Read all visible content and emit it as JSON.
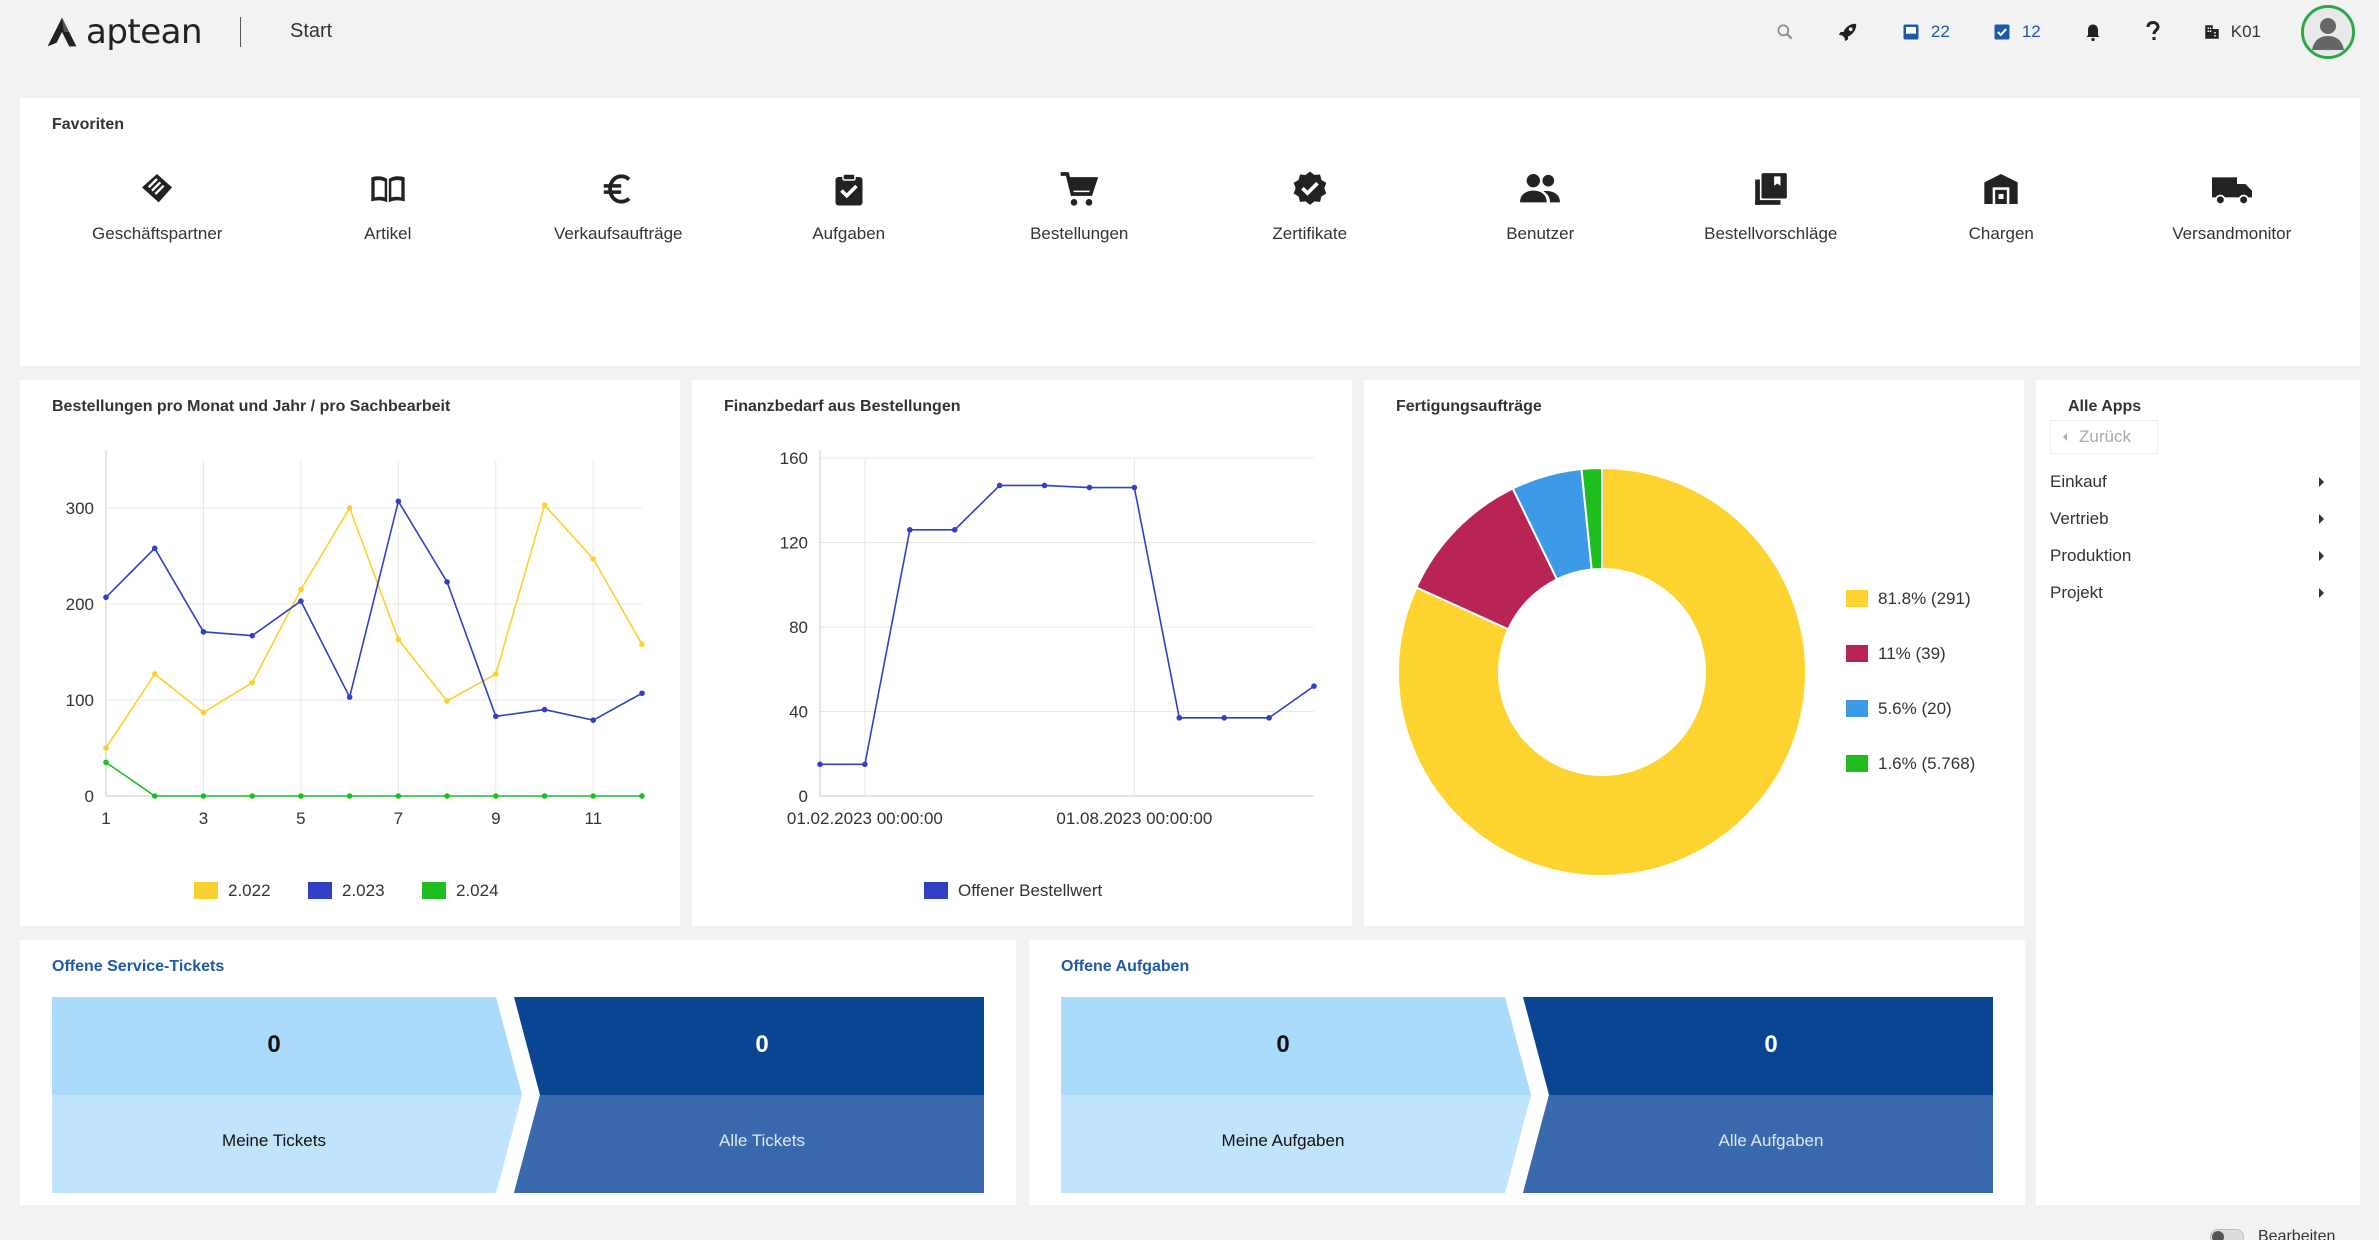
{
  "topbar": {
    "logo_text": "aptean",
    "title": "Start",
    "inbox_count": "22",
    "tasks_count": "12",
    "company": "K01"
  },
  "favorites": {
    "title": "Favoriten",
    "items": [
      {
        "label": "Geschäftspartner",
        "icon": "handshake-icon"
      },
      {
        "label": "Artikel",
        "icon": "book-icon"
      },
      {
        "label": "Verkaufsaufträge",
        "icon": "euro-icon"
      },
      {
        "label": "Aufgaben",
        "icon": "clipboard-check-icon"
      },
      {
        "label": "Bestellungen",
        "icon": "shopping-cart-icon"
      },
      {
        "label": "Zertifikate",
        "icon": "verified-badge-icon"
      },
      {
        "label": "Benutzer",
        "icon": "people-icon"
      },
      {
        "label": "Bestellvorschläge",
        "icon": "library-books-icon"
      },
      {
        "label": "Chargen",
        "icon": "warehouse-icon"
      },
      {
        "label": "Versandmonitor",
        "icon": "truck-icon"
      }
    ]
  },
  "chart1": {
    "title": "Bestellungen pro Monat und Jahr / pro Sachbearbeit"
  },
  "chart2": {
    "title": "Finanzbedarf aus Bestellungen"
  },
  "chart3": {
    "title": "Fertigungsaufträge"
  },
  "chart_data": [
    {
      "type": "line",
      "x": [
        1,
        2,
        3,
        4,
        5,
        6,
        7,
        8,
        9,
        10,
        11,
        12
      ],
      "xticks": [
        "1",
        "3",
        "5",
        "7",
        "9",
        "11"
      ],
      "xtick_values": [
        1,
        3,
        5,
        7,
        9,
        11
      ],
      "yticks": [
        "0",
        "100",
        "200",
        "300"
      ],
      "ytick_values": [
        0,
        100,
        200,
        300
      ],
      "ylim": [
        0,
        350
      ],
      "series": [
        {
          "name": "2.022",
          "color": "#f9d02f",
          "values": [
            50,
            127,
            87,
            118,
            215,
            300,
            163,
            99,
            127,
            303,
            247,
            158
          ]
        },
        {
          "name": "2.023",
          "color": "#3041c5",
          "values": [
            207,
            258,
            171,
            167,
            203,
            103,
            307,
            223,
            83,
            90,
            79,
            107
          ]
        },
        {
          "name": "2.024",
          "color": "#1fbe1f",
          "values": [
            35,
            0,
            0,
            0,
            0,
            0,
            0,
            0,
            0,
            0,
            0,
            0
          ]
        }
      ],
      "grid": true,
      "legend": "bottom"
    },
    {
      "type": "line",
      "x": [
        "2023-01-01",
        "2023-02-01",
        "2023-03-01",
        "2023-04-01",
        "2023-05-01",
        "2023-06-01",
        "2023-07-01",
        "2023-08-01",
        "2023-09-01",
        "2023-10-01",
        "2023-11-01",
        "2023-12-01"
      ],
      "xticks": [
        "01.02.2023 00:00:00",
        "01.08.2023 00:00:00"
      ],
      "yticks": [
        "0",
        "40",
        "80",
        "120",
        "160"
      ],
      "ytick_values": [
        0,
        40,
        80,
        120,
        160
      ],
      "ylim": [
        0,
        160
      ],
      "series": [
        {
          "name": "Offener Bestellwert",
          "color": "#3041c5",
          "values": [
            15,
            15,
            126,
            126,
            147,
            147,
            146,
            146,
            37,
            37,
            37,
            52
          ]
        }
      ],
      "grid": true,
      "legend": "bottom"
    },
    {
      "type": "pie",
      "donut": true,
      "labels": [
        "81.8% (291)",
        "11% (39)",
        "5.6% (20)",
        "1.6% (5.768)"
      ],
      "values": [
        81.8,
        11,
        5.6,
        1.6
      ],
      "colors": [
        "#fdd42f",
        "#b82454",
        "#3d9ae6",
        "#1fbe1f"
      ],
      "legend": "right"
    }
  ],
  "apps": {
    "title": "Alle Apps",
    "back_label": "Zurück",
    "items": [
      "Einkauf",
      "Vertrieb",
      "Produktion",
      "Projekt"
    ]
  },
  "tickets": {
    "title": "Offene Service-Tickets",
    "mine_count": "0",
    "mine_label": "Meine Tickets",
    "all_count": "0",
    "all_label": "Alle Tickets"
  },
  "tasks": {
    "title": "Offene Aufgaben",
    "mine_count": "0",
    "mine_label": "Meine Aufgaben",
    "all_count": "0",
    "all_label": "Alle Aufgaben"
  },
  "footer": {
    "edit_label": "Bearbeiten"
  },
  "colors": {
    "accent_blue": "#1e5aa8",
    "tile_light": "#aadaf9",
    "tile_light_bottom": "#bfe4fb",
    "tile_dark": "#094592",
    "tile_dark_bottom": "#3a6aad"
  }
}
